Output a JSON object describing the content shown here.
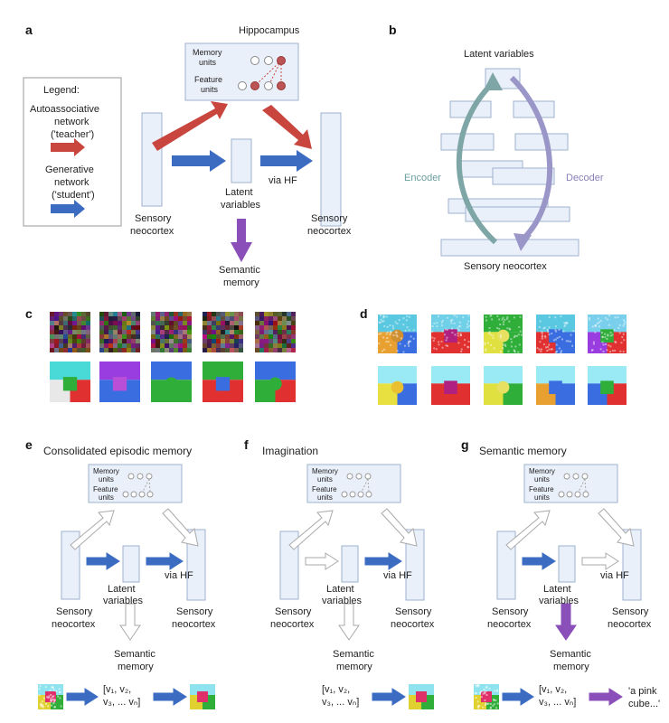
{
  "panels": {
    "a": {
      "label": "a",
      "hippocampus": "Hippocampus",
      "memory_units": [
        "Memory",
        "units"
      ],
      "feature_units": [
        "Feature",
        "units"
      ],
      "legend_title": "Legend:",
      "legend_teacher": [
        "Autoassociative",
        "network",
        "('teacher')"
      ],
      "legend_student": [
        "Generative",
        "network",
        "('student')"
      ],
      "sensory_left": [
        "Sensory",
        "neocortex"
      ],
      "latent": [
        "Latent",
        "variables"
      ],
      "via_hf": "via HF",
      "sensory_right": [
        "Sensory",
        "neocortex"
      ],
      "semantic": [
        "Semantic",
        "memory"
      ]
    },
    "b": {
      "label": "b",
      "latent": "Latent variables",
      "encoder": "Encoder",
      "decoder": "Decoder",
      "sensory": "Sensory neocortex"
    },
    "c": {
      "label": "c"
    },
    "d": {
      "label": "d"
    },
    "e": {
      "label": "e",
      "title": "Consolidated episodic memory",
      "memory_units": [
        "Memory",
        "units"
      ],
      "feature_units": [
        "Feature",
        "units"
      ],
      "sensory_left": [
        "Sensory",
        "neocortex"
      ],
      "latent": [
        "Latent",
        "variables"
      ],
      "via_hf": "via HF",
      "sensory_right": [
        "Sensory",
        "neocortex"
      ],
      "semantic": [
        "Semantic",
        "memory"
      ],
      "vector": [
        "[v₁, v₂,",
        "v₃, ... vₙ]"
      ]
    },
    "f": {
      "label": "f",
      "title": "Imagination",
      "memory_units": [
        "Memory",
        "units"
      ],
      "feature_units": [
        "Feature",
        "units"
      ],
      "sensory_left": [
        "Sensory",
        "neocortex"
      ],
      "latent": [
        "Latent",
        "variables"
      ],
      "via_hf": "via HF",
      "sensory_right": [
        "Sensory",
        "neocortex"
      ],
      "semantic": [
        "Semantic",
        "memory"
      ],
      "vector": [
        "[v₁, v₂,",
        "v₃, ... vₙ]"
      ]
    },
    "g": {
      "label": "g",
      "title": "Semantic memory",
      "memory_units": [
        "Memory",
        "units"
      ],
      "feature_units": [
        "Feature",
        "units"
      ],
      "sensory_left": [
        "Sensory",
        "neocortex"
      ],
      "latent": [
        "Latent",
        "variables"
      ],
      "via_hf": "via HF",
      "sensory_right": [
        "Sensory",
        "neocortex"
      ],
      "semantic": [
        "Semantic",
        "memory"
      ],
      "vector": [
        "[v₁, v₂,",
        "v₃, ... vₙ]"
      ],
      "caption": [
        "'a pink",
        "cube...'"
      ]
    }
  },
  "colors": {
    "teacher_arrow": "#c9463f",
    "student_arrow": "#3b6cc2",
    "semantic_arrow": "#8a4fb8",
    "box_fill": "#eaf0fa",
    "encoder_arrow": "#7fa6a6",
    "decoder_arrow": "#9a97c8",
    "encoder_text": "#6a9ea0",
    "decoder_text": "#8880b8"
  }
}
